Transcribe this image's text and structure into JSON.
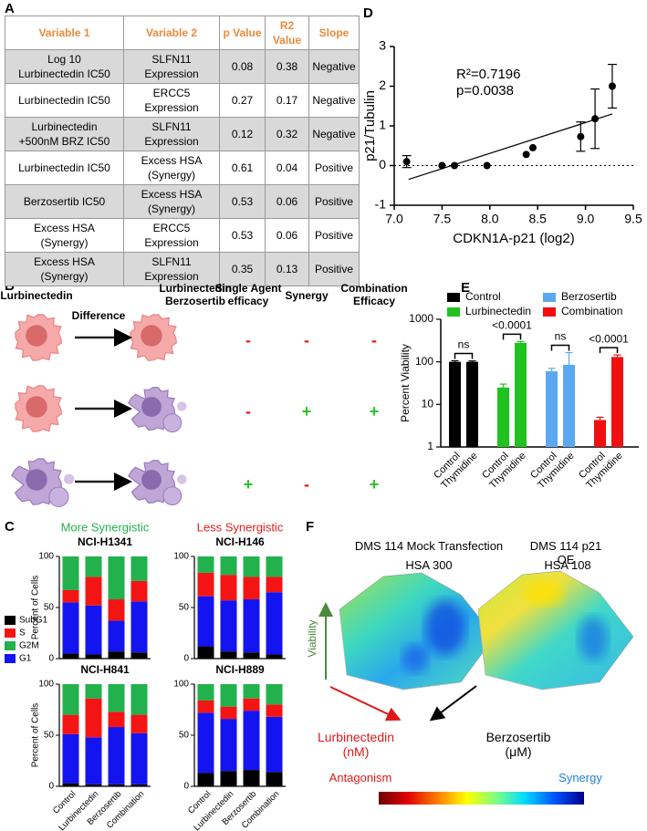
{
  "panel_labels": [
    "A",
    "B",
    "C",
    "D",
    "E",
    "F"
  ],
  "table": {
    "header": [
      "Variable 1",
      "Variable 2",
      "p Value",
      "R2 Value",
      "Slope"
    ],
    "rows": [
      [
        "Log 10\nLurbinectedin IC50",
        "SLFN11\nExpression",
        0.08,
        0.38,
        "Negative"
      ],
      [
        "Lurbinectedin IC50",
        "ERCC5 Expression",
        0.27,
        0.17,
        "Negative"
      ],
      [
        "Lurbinectedin\n+500nM BRZ IC50",
        "SLFN11\nExpression",
        0.12,
        0.32,
        "Negative"
      ],
      [
        "Lurbinectedin IC50",
        "Excess HSA\n(Synergy)",
        0.61,
        0.04,
        "Positive"
      ],
      [
        "Berzosertib IC50",
        "Excess HSA\n(Synergy)",
        0.53,
        0.06,
        "Positive"
      ],
      [
        "Excess HSA\n(Synergy)",
        "ERCC5 Expression",
        0.53,
        0.06,
        "Positive"
      ],
      [
        "Excess HSA\n(Synergy)",
        "SLFN11\nExpression",
        0.35,
        0.13,
        "Positive"
      ]
    ]
  },
  "diagram": {
    "headers": [
      "Lurbinectedin",
      "Difference",
      "Lurbinectedin\nBerzosertib",
      "Single Agent\nefficacy",
      "Synergy",
      "Combination\nEfficacy"
    ],
    "rows": [
      [
        "-",
        "-",
        "-"
      ],
      [
        "-",
        "+",
        "+"
      ],
      [
        "+",
        "-",
        "+"
      ]
    ]
  },
  "chart_data": [
    {
      "type": "scatter",
      "x": [
        7.13,
        7.5,
        7.63,
        7.97,
        8.38,
        8.45,
        8.95,
        9.1,
        9.28
      ],
      "values": [
        0.1,
        0,
        0,
        0,
        0.28,
        0.45,
        0.73,
        1.18,
        2.0
      ],
      "errors": [
        0.15,
        null,
        null,
        null,
        null,
        null,
        0.37,
        0.75,
        0.55
      ],
      "color": "#000000",
      "xlim": [
        7,
        9.5
      ],
      "ylim": [
        -1,
        3
      ],
      "xticks": [
        {
          "value": 7,
          "label": "7.0"
        },
        7.5,
        {
          "value": 8,
          "label": "8.0"
        },
        8.5,
        {
          "value": 9,
          "label": "9.0"
        },
        9.5
      ],
      "yticks": [
        -1,
        0,
        1,
        2,
        3
      ],
      "xlabel": "CDKN1A-p21 (log2)",
      "ylabel": "p21/Tubulin",
      "annotations": [
        "R²=0.7196",
        "p=0.0038"
      ],
      "trend_line": {
        "x": [
          7.15,
          9.28
        ],
        "y": [
          -0.35,
          1.3
        ]
      },
      "reference_line": 0
    },
    {
      "type": "bar",
      "log_scale": true,
      "categories": [
        "Control",
        "Thymidine"
      ],
      "series": [
        {
          "name": "Control",
          "color": "#000000",
          "values": [
            100,
            100
          ],
          "errors": [
            6,
            5
          ]
        },
        {
          "name": "Lurbinectedin",
          "color": "#1fc21f",
          "values": [
            25,
            280
          ],
          "errors": [
            5,
            20
          ]
        },
        {
          "name": "Berzosertib",
          "color": "#5aa9f0",
          "values": [
            60,
            85
          ],
          "errors": [
            10,
            80
          ]
        },
        {
          "name": "Combination",
          "color": "#f01010",
          "values": [
            4.3,
            130
          ],
          "errors": [
            0.7,
            15
          ]
        }
      ],
      "ylim": [
        1,
        1000
      ],
      "yticks": [
        1,
        10,
        100,
        1000
      ],
      "ylabel": "Percent Viability",
      "annotations": [
        "ns",
        "<0.0001",
        "ns",
        "<0.0001"
      ],
      "legend": "top"
    },
    {
      "type": "stacked_bar",
      "subtitle": "More Synergistic",
      "subtitle_color": "#22b14c",
      "title": "NCI-H1341",
      "categories": [
        null,
        null,
        null,
        null
      ],
      "series": [
        {
          "name": "SubG1",
          "color": "#000000",
          "values": [
            5,
            4,
            7,
            6
          ]
        },
        {
          "name": "S",
          "color": "#f41414",
          "values": [
            12,
            28,
            21,
            20
          ]
        },
        {
          "name": "G2M",
          "color": "#22b14c",
          "values": [
            33,
            20,
            42,
            24
          ]
        },
        {
          "name": "G1",
          "color": "#1414f0",
          "values": [
            50,
            48,
            30,
            50
          ]
        }
      ],
      "ylim": [
        0,
        100
      ],
      "yticks": [
        0,
        50,
        100
      ],
      "ylabel": "Percent of Cells",
      "legend": "left"
    },
    {
      "type": "stacked_bar",
      "subtitle": "Less Synergistic",
      "subtitle_color": "#e81c1c",
      "title": "NCI-H146",
      "categories": [
        null,
        null,
        null,
        null
      ],
      "series": [
        {
          "name": "SubG1",
          "color": "#000000",
          "values": [
            12,
            7,
            6,
            4
          ]
        },
        {
          "name": "S",
          "color": "#f41414",
          "values": [
            23,
            25,
            22,
            15
          ]
        },
        {
          "name": "G2M",
          "color": "#22b14c",
          "values": [
            16,
            18,
            20,
            20
          ]
        },
        {
          "name": "G1",
          "color": "#1414f0",
          "values": [
            49,
            50,
            52,
            61
          ]
        }
      ],
      "ylim": [
        0,
        100
      ],
      "yticks": [
        0,
        50,
        100
      ]
    },
    {
      "type": "stacked_bar",
      "title": "NCI-H841",
      "categories": [
        "Control",
        "Lurbinectedin",
        "Berzosertib",
        "Combination"
      ],
      "series": [
        {
          "name": "SubG1",
          "color": "#000000",
          "values": [
            3,
            2,
            2,
            2
          ]
        },
        {
          "name": "S",
          "color": "#f41414",
          "values": [
            19,
            38,
            15,
            18
          ]
        },
        {
          "name": "G2M",
          "color": "#22b14c",
          "values": [
            30,
            14,
            27,
            30
          ]
        },
        {
          "name": "G1",
          "color": "#1414f0",
          "values": [
            48,
            46,
            56,
            50
          ]
        }
      ],
      "ylim": [
        0,
        100
      ],
      "yticks": [
        0,
        50,
        100
      ],
      "ylabel": "Percent of Cells"
    },
    {
      "type": "stacked_bar",
      "title": "NCI-H889",
      "categories": [
        "Control",
        "Lurbinectedin",
        "Berzosertib",
        "Combination"
      ],
      "series": [
        {
          "name": "SubG1",
          "color": "#000000",
          "values": [
            13,
            15,
            16,
            14
          ]
        },
        {
          "name": "S",
          "color": "#f41414",
          "values": [
            12,
            12,
            12,
            12
          ]
        },
        {
          "name": "G2M",
          "color": "#22b14c",
          "values": [
            16,
            22,
            14,
            20
          ]
        },
        {
          "name": "G1",
          "color": "#1414f0",
          "values": [
            59,
            51,
            58,
            54
          ]
        }
      ],
      "ylim": [
        0,
        100
      ],
      "yticks": [
        0,
        50,
        100
      ]
    }
  ],
  "surface": {
    "left_title": "DMS 114 Mock Transfection",
    "left_hsa": "HSA 300",
    "right_title": "DMS 114 p21 OE",
    "right_hsa": "HSA 108",
    "z_label": "Viability",
    "x_label": "Lurbinectedin\n(nM)",
    "y_label": "Berzosertib\n(μM)",
    "low": "Antagonism",
    "high": "Synergy"
  }
}
